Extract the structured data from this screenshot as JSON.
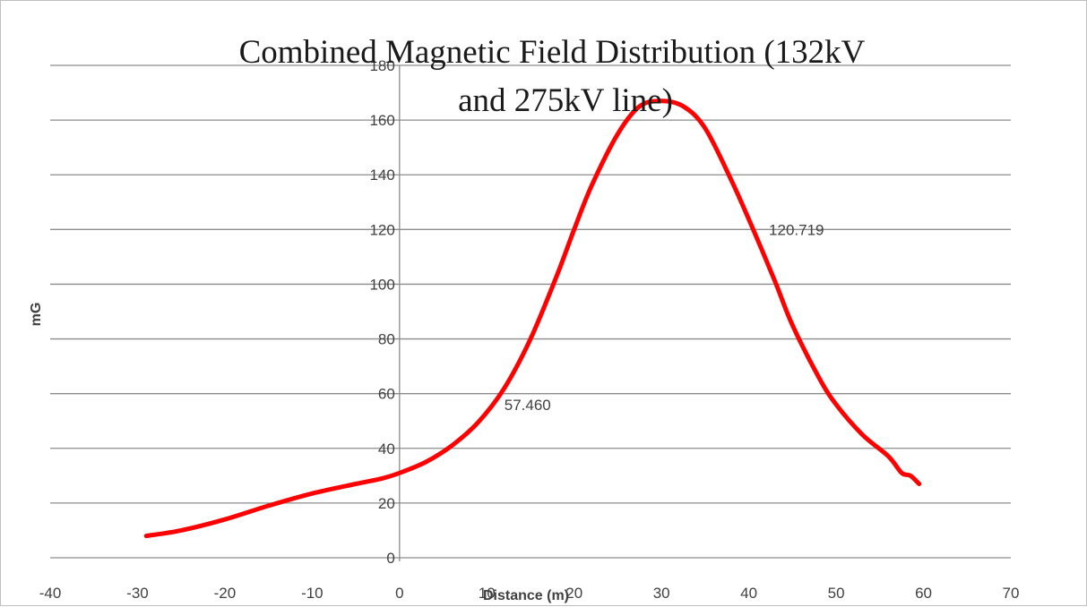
{
  "chart_data": {
    "type": "line",
    "title": "Combined Magnetic Field Distribution (132kV and 275kV line)",
    "title_lines": [
      "Combined Magnetic Field Distribution (132kV",
      "and 275kV line)"
    ],
    "xlabel": "Distance (m)",
    "ylabel": "mG",
    "xlim": [
      -40,
      70
    ],
    "ylim": [
      0,
      180
    ],
    "x_ticks": [
      -40,
      -30,
      -20,
      -10,
      0,
      10,
      20,
      30,
      40,
      50,
      60,
      70
    ],
    "y_ticks": [
      0,
      20,
      40,
      60,
      80,
      100,
      120,
      140,
      160,
      180
    ],
    "grid": "horizontal",
    "legend": "none",
    "series_color": "#ff0000",
    "series": [
      {
        "points": [
          [
            -29,
            8
          ],
          [
            -25,
            10
          ],
          [
            -20,
            14
          ],
          [
            -15,
            19
          ],
          [
            -10,
            23.5
          ],
          [
            -5,
            27
          ],
          [
            -2,
            29
          ],
          [
            0,
            31
          ],
          [
            3,
            35
          ],
          [
            6,
            41
          ],
          [
            9,
            49.5
          ],
          [
            12,
            62
          ],
          [
            15,
            80
          ],
          [
            18,
            103
          ],
          [
            20,
            120
          ],
          [
            22,
            136
          ],
          [
            25,
            155
          ],
          [
            27.5,
            165
          ],
          [
            30,
            167
          ],
          [
            32.5,
            165
          ],
          [
            35,
            157
          ],
          [
            38,
            138
          ],
          [
            40.5,
            120
          ],
          [
            43,
            101
          ],
          [
            45,
            85
          ],
          [
            48,
            66
          ],
          [
            50,
            56
          ],
          [
            53,
            45
          ],
          [
            56,
            37
          ],
          [
            57.5,
            31
          ],
          [
            58.5,
            30
          ],
          [
            59.5,
            27
          ]
        ]
      }
    ],
    "annotations": [
      {
        "text": "120.719",
        "x": 42.3,
        "y": 120
      },
      {
        "text": "57.460",
        "x": 12,
        "y": 56
      }
    ]
  }
}
